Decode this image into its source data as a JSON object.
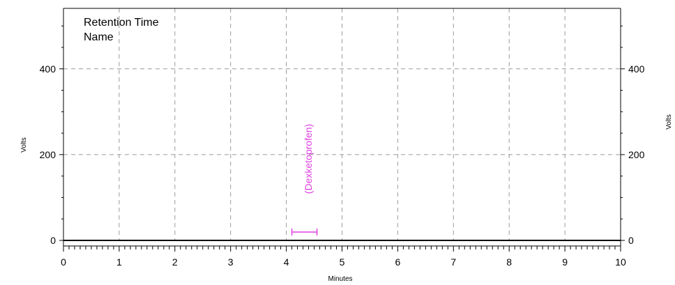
{
  "chart_data": {
    "type": "line",
    "title": "",
    "xlabel": "Minutes",
    "ylabel": "Volts",
    "ylabel_right": "Volts",
    "xlim": [
      0,
      10
    ],
    "ylim": [
      -5,
      540
    ],
    "x_ticks": [
      0,
      1,
      2,
      3,
      4,
      5,
      6,
      7,
      8,
      9,
      10
    ],
    "y_ticks": [
      0,
      200,
      400
    ],
    "grid": true,
    "legend": [
      "Retention Time",
      "Name"
    ],
    "series": [
      {
        "x": [
          0,
          10
        ],
        "y": [
          0,
          0
        ]
      }
    ],
    "annotations": [
      {
        "label": "(Dexketoprofen)",
        "x": 4.33,
        "x_start": 4.1,
        "x_end": 4.55,
        "y": 0,
        "color": "#e040e0"
      }
    ],
    "colors": {
      "trace": "#000000",
      "grid": "#9a9a9a",
      "annotation": "#e040e0"
    }
  }
}
